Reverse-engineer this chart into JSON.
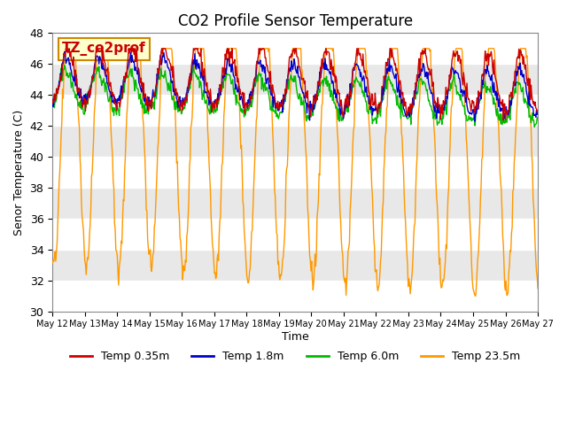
{
  "title": "CO2 Profile Sensor Temperature",
  "ylabel": "Senor Temperature (C)",
  "xlabel": "Time",
  "ylim": [
    30,
    48
  ],
  "yticks": [
    30,
    32,
    34,
    36,
    38,
    40,
    42,
    44,
    46,
    48
  ],
  "annotation_label": "TZ_co2prof",
  "annotation_color": "#cc0000",
  "annotation_bg": "#ffffcc",
  "annotation_border": "#cc8800",
  "line_colors": [
    "#cc0000",
    "#0000cc",
    "#00bb00",
    "#ff9900"
  ],
  "legend_labels": [
    "Temp 0.35m",
    "Temp 1.8m",
    "Temp 6.0m",
    "Temp 23.5m"
  ],
  "background_color": "#e8e8e8",
  "n_days": 15,
  "start_day": 12,
  "points_per_day": 48
}
